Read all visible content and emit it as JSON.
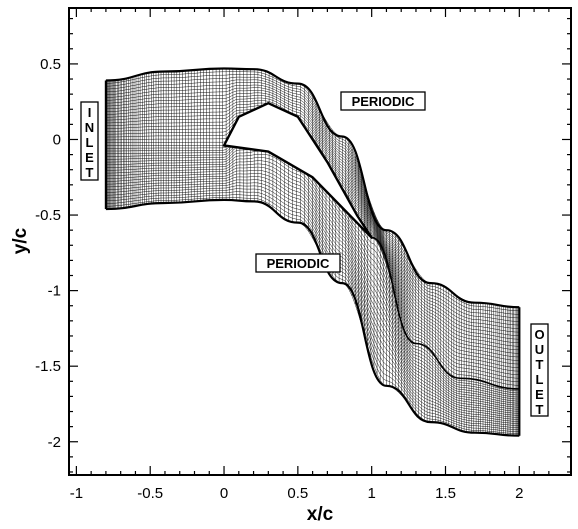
{
  "chart_data": {
    "type": "mesh",
    "xlabel": "x/c",
    "ylabel": "y/c",
    "xlim": [
      -1.05,
      2.35
    ],
    "ylim": [
      -2.22,
      0.87
    ],
    "x_ticks": [
      -1,
      -0.5,
      0,
      0.5,
      1,
      1.5,
      2
    ],
    "x_tick_labels": [
      "-1",
      "-0.5",
      "0",
      "0.5",
      "1",
      "1.5",
      "2"
    ],
    "y_ticks": [
      0.5,
      0,
      -0.5,
      -1,
      -1.5,
      -2
    ],
    "y_tick_labels": [
      "0.5",
      "0",
      "-0.5",
      "-1",
      "-1.5",
      "-2"
    ],
    "grid": false,
    "labels": [
      {
        "name": "periodic-top",
        "text": "PERIODIC"
      },
      {
        "name": "periodic-bottom",
        "text": "PERIODIC"
      },
      {
        "name": "inlet",
        "text": "INLET"
      },
      {
        "name": "outlet",
        "text": "OUTLET"
      }
    ],
    "domain": {
      "inlet_x": -0.8,
      "outlet_x": 2.0,
      "upper_periodic": [
        [
          -0.8,
          0.39
        ],
        [
          -0.4,
          0.45
        ],
        [
          0,
          0.47
        ],
        [
          0.2,
          0.465
        ],
        [
          0.5,
          0.37
        ],
        [
          0.8,
          0.02
        ],
        [
          1.1,
          -0.6
        ],
        [
          1.4,
          -0.95
        ],
        [
          1.7,
          -1.08
        ],
        [
          2.0,
          -1.11
        ]
      ],
      "lower_periodic": [
        [
          -0.8,
          -0.46
        ],
        [
          -0.4,
          -0.42
        ],
        [
          0,
          -0.4
        ],
        [
          0.2,
          -0.41
        ],
        [
          0.5,
          -0.55
        ],
        [
          0.8,
          -0.95
        ],
        [
          1.1,
          -1.63
        ],
        [
          1.4,
          -1.87
        ],
        [
          1.7,
          -1.94
        ],
        [
          2.0,
          -1.96
        ]
      ],
      "blade_pressure_side": [
        [
          0,
          -0.04
        ],
        [
          0.3,
          -0.08
        ],
        [
          0.6,
          -0.25
        ],
        [
          0.8,
          -0.45
        ],
        [
          0.95,
          -0.6
        ],
        [
          1.0,
          -0.65
        ]
      ],
      "blade_suction_side": [
        [
          0,
          -0.04
        ],
        [
          0.1,
          0.15
        ],
        [
          0.3,
          0.24
        ],
        [
          0.5,
          0.15
        ],
        [
          0.7,
          -0.15
        ],
        [
          0.9,
          -0.5
        ],
        [
          1.0,
          -0.65
        ]
      ],
      "wake": [
        [
          1.0,
          -0.65
        ],
        [
          1.3,
          -1.35
        ],
        [
          1.6,
          -1.58
        ],
        [
          2.0,
          -1.65
        ]
      ]
    }
  }
}
